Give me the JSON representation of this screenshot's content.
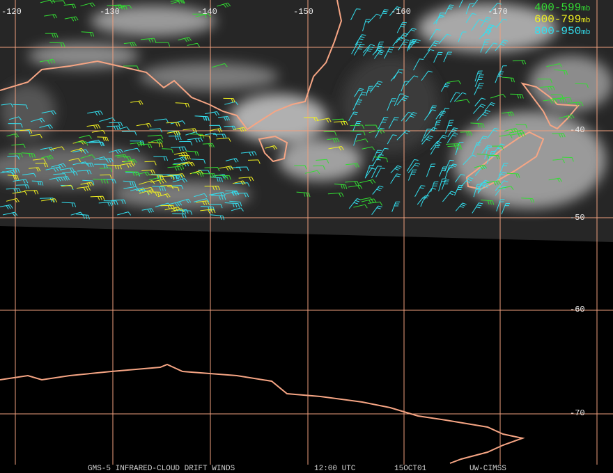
{
  "longitude_labels": [
    "-120",
    "-130",
    "-140",
    "-150",
    "-160",
    "-170"
  ],
  "latitude_labels": [
    "-40",
    "-50",
    "-60",
    "-70"
  ],
  "legend": [
    {
      "range": "400-599",
      "unit": "mb"
    },
    {
      "range": "600-799",
      "unit": "mb"
    },
    {
      "range": "800-950",
      "unit": "mb"
    }
  ],
  "footer": {
    "product": "GMS-5 INFRARED-CLOUD DRIFT WINDS",
    "time": "12:00 UTC",
    "date": "15OCT01",
    "source": "UW-CIMSS"
  }
}
